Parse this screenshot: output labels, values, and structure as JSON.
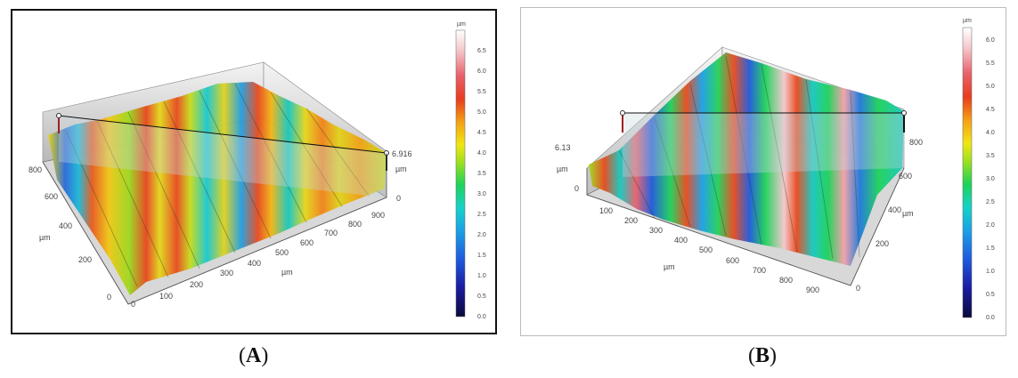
{
  "panel_a": {
    "x_unit": "µm",
    "y_unit": "µm",
    "z_unit": "µm",
    "colorbar_unit": "µm",
    "x_ticks": [
      "0",
      "100",
      "200",
      "300",
      "400",
      "500",
      "600",
      "700",
      "800",
      "900"
    ],
    "y_ticks": [
      "0",
      "200",
      "400",
      "600",
      "800"
    ],
    "z_max": "6.916",
    "z_min": "0",
    "colorbar_ticks": [
      "0.0",
      "0.5",
      "1.0",
      "1.5",
      "2.0",
      "2.5",
      "3.0",
      "3.5",
      "4.0",
      "4.5",
      "5.0",
      "5.5",
      "6.0",
      "6.5"
    ]
  },
  "panel_b": {
    "x_unit": "µm",
    "y_unit": "µm",
    "z_unit": "µm",
    "colorbar_unit": "µm",
    "x_ticks": [
      "100",
      "200",
      "300",
      "400",
      "500",
      "600",
      "700",
      "800",
      "900"
    ],
    "y_ticks": [
      "0",
      "200",
      "400",
      "600",
      "800"
    ],
    "z_max": "6.13",
    "z_min": "0",
    "colorbar_ticks": [
      "0.0",
      "0.5",
      "1.0",
      "1.5",
      "2.0",
      "2.5",
      "3.0",
      "3.5",
      "4.0",
      "4.5",
      "5.0",
      "5.5",
      "6.0"
    ]
  },
  "captions": {
    "a_letter": "A",
    "b_letter": "B",
    "open": "(",
    "close": ")"
  },
  "colors": {
    "palette": [
      "#0a0a3a",
      "#1a1aa0",
      "#1e5adc",
      "#1aa0e6",
      "#16d2c8",
      "#1ed25a",
      "#a0e01e",
      "#f0e614",
      "#f5a014",
      "#e83c1e",
      "#e8606a",
      "#f4c8cc",
      "#ffffff"
    ]
  }
}
